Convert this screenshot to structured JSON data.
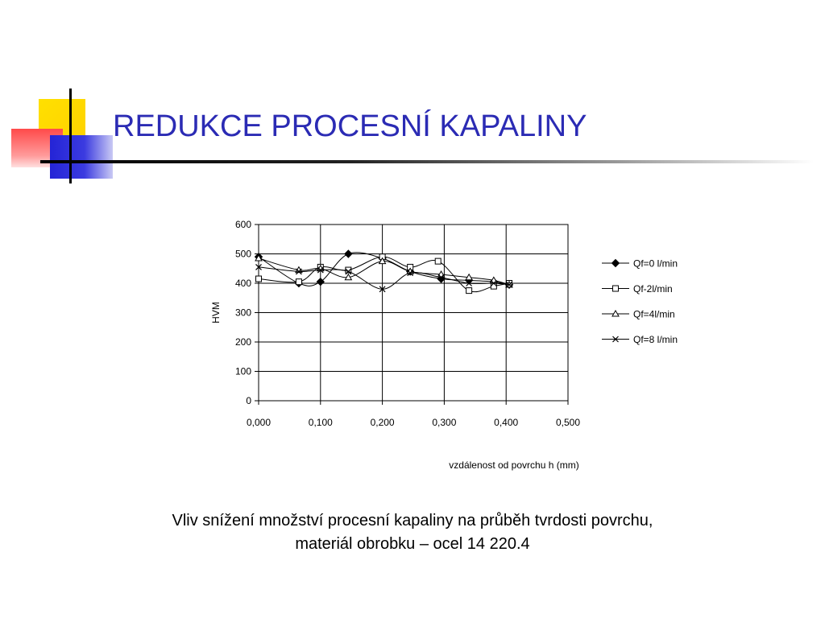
{
  "slide": {
    "title": "REDUKCE PROCESNÍ KAPALINY",
    "caption_line1": "Vliv snížení množství procesní kapaliny na průběh tvrdosti povrchu,",
    "caption_line2": "materiál obrobku – ocel 14 220.4"
  },
  "colors": {
    "title": "#2b2bb4",
    "deco_yellow": "#ffd200",
    "deco_red": "#ff4a4a",
    "deco_blue": "#2424d6"
  },
  "chart_data": {
    "type": "line",
    "title": "",
    "xlabel": "vzdálenost od povrchu h (mm)",
    "ylabel": "HVM",
    "xlim": [
      0,
      0.5
    ],
    "ylim": [
      0,
      600
    ],
    "x_ticks": [
      "0,000",
      "0,100",
      "0,200",
      "0,300",
      "0,400",
      "0,500"
    ],
    "y_ticks": [
      "0",
      "100",
      "200",
      "300",
      "400",
      "500",
      "600"
    ],
    "grid": "horizontal + vertical major",
    "legend_position": "right",
    "series": [
      {
        "name": "Qf=0 l/min",
        "marker": "diamond",
        "x": [
          0.0,
          0.065,
          0.1,
          0.145,
          0.2,
          0.245,
          0.295,
          0.34,
          0.38,
          0.405
        ],
        "y": [
          490,
          400,
          405,
          500,
          485,
          440,
          415,
          410,
          405,
          395
        ]
      },
      {
        "name": "Qf-2l/min",
        "marker": "square",
        "x": [
          0.0,
          0.065,
          0.1,
          0.145,
          0.2,
          0.245,
          0.29,
          0.34,
          0.38,
          0.405
        ],
        "y": [
          415,
          405,
          455,
          445,
          490,
          455,
          475,
          375,
          390,
          400
        ]
      },
      {
        "name": "Qf=4l/min",
        "marker": "triangle",
        "x": [
          0.0,
          0.065,
          0.1,
          0.145,
          0.2,
          0.245,
          0.295,
          0.34,
          0.38,
          0.405
        ],
        "y": [
          485,
          445,
          450,
          420,
          475,
          440,
          430,
          420,
          410,
          395
        ]
      },
      {
        "name": "Qf=8 l/min",
        "marker": "x",
        "x": [
          0.0,
          0.065,
          0.1,
          0.145,
          0.2,
          0.245,
          0.295,
          0.34,
          0.38,
          0.405
        ],
        "y": [
          455,
          440,
          445,
          440,
          380,
          435,
          420,
          400,
          400,
          395
        ]
      }
    ]
  }
}
